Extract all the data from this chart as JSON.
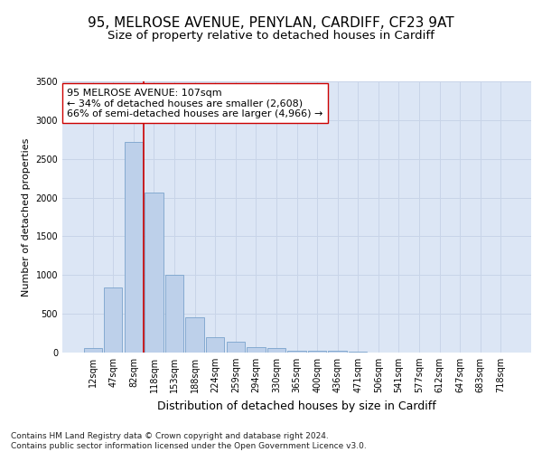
{
  "title_line1": "95, MELROSE AVENUE, PENYLAN, CARDIFF, CF23 9AT",
  "title_line2": "Size of property relative to detached houses in Cardiff",
  "xlabel": "Distribution of detached houses by size in Cardiff",
  "ylabel": "Number of detached properties",
  "categories": [
    "12sqm",
    "47sqm",
    "82sqm",
    "118sqm",
    "153sqm",
    "188sqm",
    "224sqm",
    "259sqm",
    "294sqm",
    "330sqm",
    "365sqm",
    "400sqm",
    "436sqm",
    "471sqm",
    "506sqm",
    "541sqm",
    "577sqm",
    "612sqm",
    "647sqm",
    "683sqm",
    "718sqm"
  ],
  "values": [
    60,
    840,
    2720,
    2060,
    1000,
    450,
    200,
    140,
    65,
    55,
    25,
    25,
    20,
    15,
    5,
    3,
    1,
    0,
    0,
    0,
    0
  ],
  "bar_color": "#bdd0ea",
  "bar_edge_color": "#7aa3cc",
  "vline_color": "#cc0000",
  "annotation_text": "95 MELROSE AVENUE: 107sqm\n← 34% of detached houses are smaller (2,608)\n66% of semi-detached houses are larger (4,966) →",
  "annotation_box_color": "#ffffff",
  "annotation_box_edge": "#cc0000",
  "ylim": [
    0,
    3500
  ],
  "yticks": [
    0,
    500,
    1000,
    1500,
    2000,
    2500,
    3000,
    3500
  ],
  "grid_color": "#c8d4e8",
  "background_color": "#dce6f5",
  "footer_text": "Contains HM Land Registry data © Crown copyright and database right 2024.\nContains public sector information licensed under the Open Government Licence v3.0.",
  "title_fontsize": 11,
  "subtitle_fontsize": 9.5,
  "tick_fontsize": 7,
  "ylabel_fontsize": 8,
  "xlabel_fontsize": 9,
  "annotation_fontsize": 8,
  "footer_fontsize": 6.5
}
